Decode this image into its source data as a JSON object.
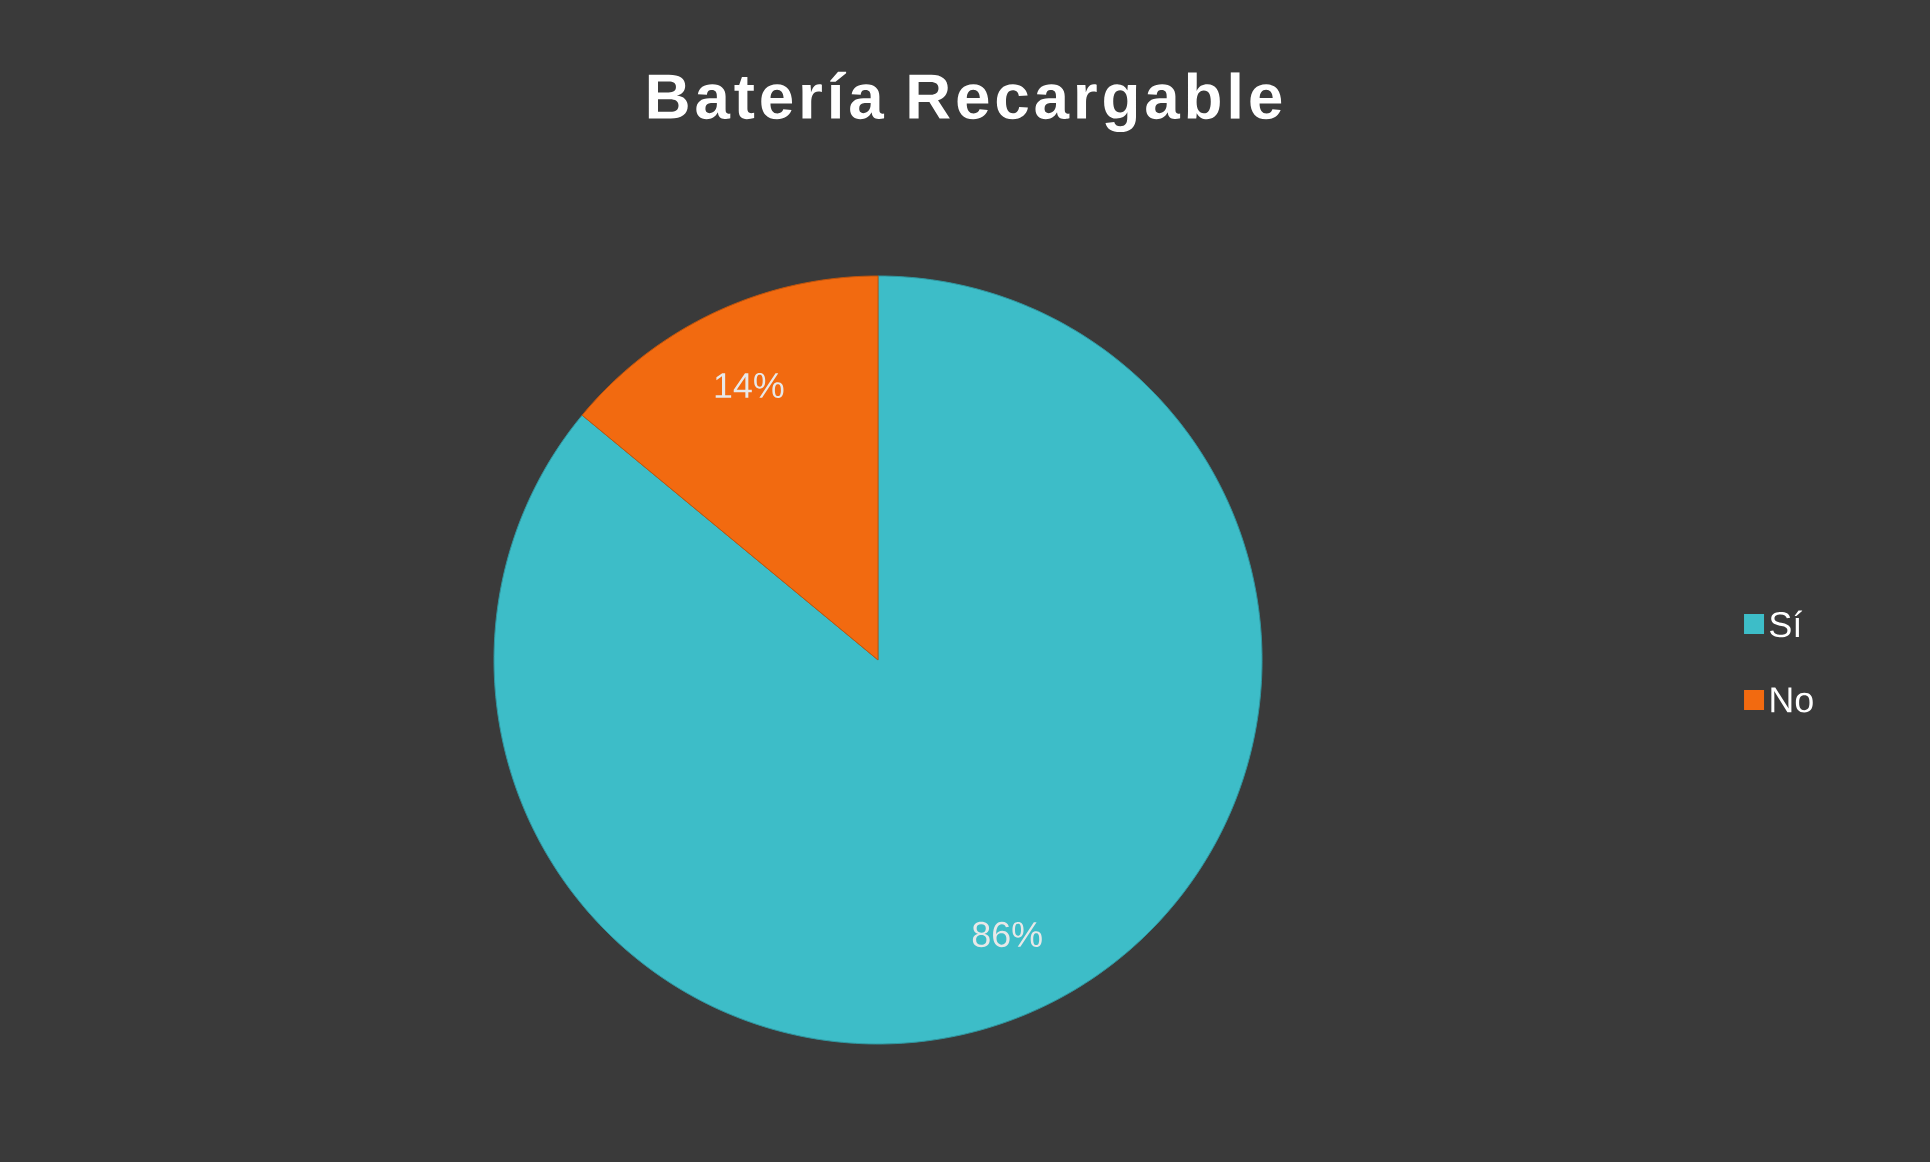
{
  "chart_data": {
    "type": "pie",
    "title": "Batería Recargable",
    "categories": [
      "Sí",
      "No"
    ],
    "values": [
      86,
      14
    ],
    "colors": [
      "#3dbdc8",
      "#f26a10"
    ],
    "value_labels": [
      "86%",
      "14%"
    ],
    "legend": "right"
  }
}
